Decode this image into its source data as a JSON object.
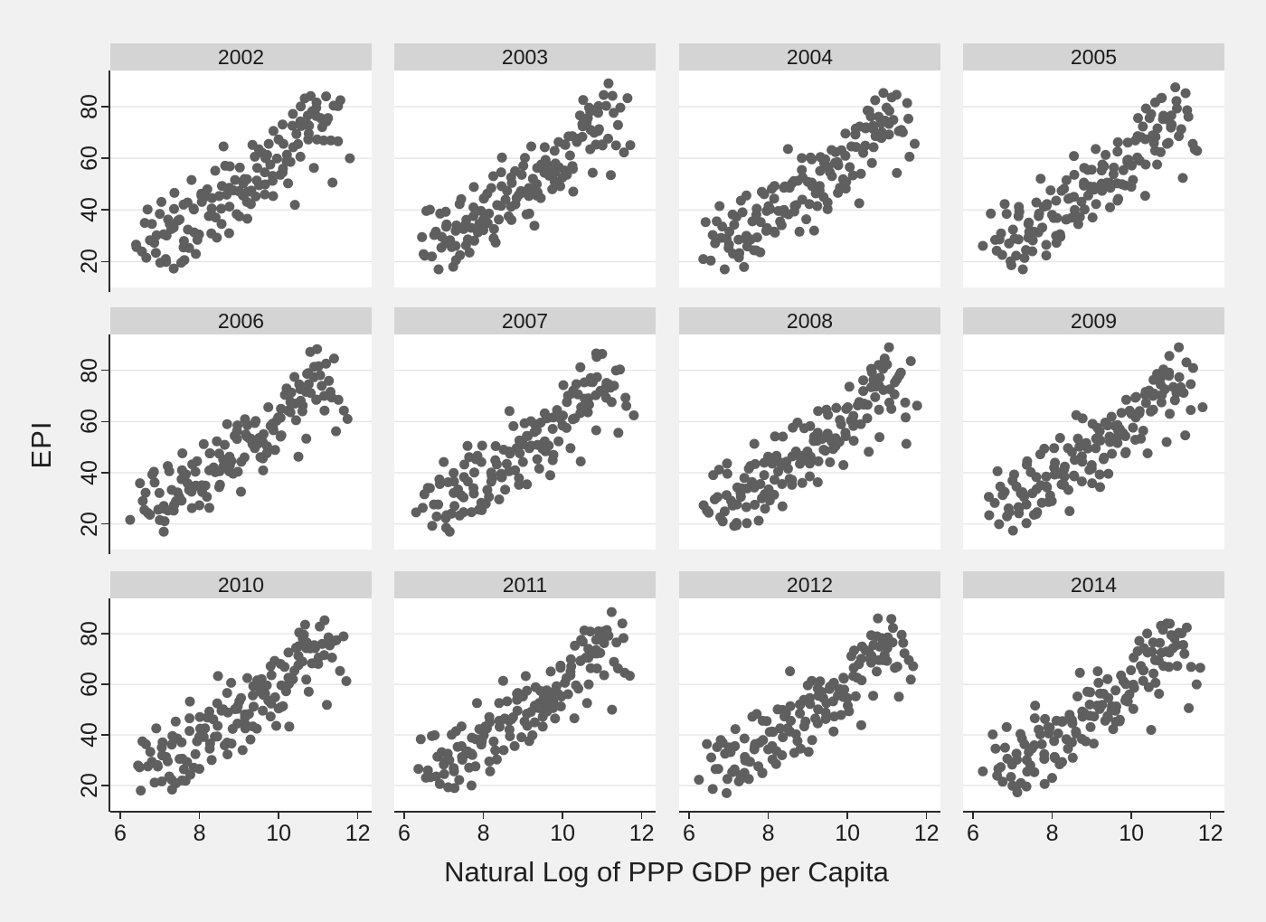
{
  "chart_data": {
    "type": "scatter",
    "title": "",
    "xlabel": "Natural Log of PPP GDP per Capita",
    "ylabel": "EPI",
    "facets": [
      "2002",
      "2003",
      "2004",
      "2005",
      "2006",
      "2007",
      "2008",
      "2009",
      "2010",
      "2011",
      "2012",
      "2014"
    ],
    "grid_layout": "3 rows x 4 columns",
    "x_ticks": [
      6,
      8,
      10,
      12
    ],
    "y_ticks": [
      20,
      40,
      60,
      80
    ],
    "x_domain": [
      5.75,
      12.35
    ],
    "y_domain": [
      10,
      94
    ],
    "gridlines": "horizontal at y ticks",
    "legend": "none",
    "marker_color": "#5f5f5f",
    "panel_bg": "#ffffff",
    "page_bg": "#f1f1f1",
    "header_bg": "#d4d4d4",
    "gridline_color": "#e2e2e2",
    "axis_color": "#2a2a2a",
    "base_points": [
      [
        6.35,
        24
      ],
      [
        6.5,
        29
      ],
      [
        6.55,
        37
      ],
      [
        6.6,
        25
      ],
      [
        6.65,
        21
      ],
      [
        6.7,
        32
      ],
      [
        6.75,
        38
      ],
      [
        6.8,
        26
      ],
      [
        6.85,
        30
      ],
      [
        6.9,
        41
      ],
      [
        6.95,
        24
      ],
      [
        7.0,
        18
      ],
      [
        7.0,
        33
      ],
      [
        7.05,
        27
      ],
      [
        7.1,
        21
      ],
      [
        7.1,
        38
      ],
      [
        7.15,
        30
      ],
      [
        7.2,
        24
      ],
      [
        7.2,
        35
      ],
      [
        7.25,
        19
      ],
      [
        7.3,
        28
      ],
      [
        7.3,
        41
      ],
      [
        7.35,
        33
      ],
      [
        7.4,
        22
      ],
      [
        7.4,
        30
      ],
      [
        7.45,
        37
      ],
      [
        7.5,
        25
      ],
      [
        7.5,
        44
      ],
      [
        7.55,
        31
      ],
      [
        7.6,
        35
      ],
      [
        7.6,
        27
      ],
      [
        7.65,
        40
      ],
      [
        7.7,
        33
      ],
      [
        7.7,
        50
      ],
      [
        7.75,
        23
      ],
      [
        7.8,
        37
      ],
      [
        7.8,
        44
      ],
      [
        7.85,
        30
      ],
      [
        7.9,
        38
      ],
      [
        7.9,
        26
      ],
      [
        7.95,
        45
      ],
      [
        8.0,
        33
      ],
      [
        8.0,
        41
      ],
      [
        8.05,
        29
      ],
      [
        8.1,
        36
      ],
      [
        8.1,
        48
      ],
      [
        8.15,
        42
      ],
      [
        8.2,
        32
      ],
      [
        8.2,
        45
      ],
      [
        8.25,
        38
      ],
      [
        8.3,
        51
      ],
      [
        8.3,
        28
      ],
      [
        8.35,
        40
      ],
      [
        8.4,
        35
      ],
      [
        8.4,
        46
      ],
      [
        8.45,
        43
      ],
      [
        8.5,
        37
      ],
      [
        8.5,
        52
      ],
      [
        8.55,
        47
      ],
      [
        8.6,
        40
      ],
      [
        8.6,
        62
      ],
      [
        8.65,
        34
      ],
      [
        8.7,
        48
      ],
      [
        8.7,
        43
      ],
      [
        8.75,
        55
      ],
      [
        8.8,
        39
      ],
      [
        8.8,
        47
      ],
      [
        8.85,
        50
      ],
      [
        8.9,
        44
      ],
      [
        8.9,
        58
      ],
      [
        8.95,
        37
      ],
      [
        9.0,
        49
      ],
      [
        9.0,
        55
      ],
      [
        9.05,
        46
      ],
      [
        9.1,
        52
      ],
      [
        9.1,
        41
      ],
      [
        9.15,
        57
      ],
      [
        9.15,
        35
      ],
      [
        9.2,
        48
      ],
      [
        9.2,
        62
      ],
      [
        9.25,
        53
      ],
      [
        9.3,
        47
      ],
      [
        9.3,
        58
      ],
      [
        9.35,
        50
      ],
      [
        9.4,
        55
      ],
      [
        9.4,
        44
      ],
      [
        9.45,
        60
      ],
      [
        9.5,
        52
      ],
      [
        9.5,
        48
      ],
      [
        9.55,
        57
      ],
      [
        9.55,
        42
      ],
      [
        9.6,
        51
      ],
      [
        9.6,
        63
      ],
      [
        9.65,
        55
      ],
      [
        9.7,
        49
      ],
      [
        9.7,
        60
      ],
      [
        9.75,
        53
      ],
      [
        9.8,
        58
      ],
      [
        9.8,
        46
      ],
      [
        9.85,
        64
      ],
      [
        9.9,
        56
      ],
      [
        9.9,
        50
      ],
      [
        9.95,
        61
      ],
      [
        10.0,
        54
      ],
      [
        10.0,
        68
      ],
      [
        10.05,
        59
      ],
      [
        10.1,
        66
      ],
      [
        10.1,
        52
      ],
      [
        10.15,
        71
      ],
      [
        10.2,
        62
      ],
      [
        10.2,
        57
      ],
      [
        10.25,
        68
      ],
      [
        10.3,
        74
      ],
      [
        10.3,
        60
      ],
      [
        10.35,
        65
      ],
      [
        10.4,
        70
      ],
      [
        10.4,
        45
      ],
      [
        10.45,
        73
      ],
      [
        10.5,
        66
      ],
      [
        10.5,
        78
      ],
      [
        10.55,
        70
      ],
      [
        10.6,
        75
      ],
      [
        10.6,
        63
      ],
      [
        10.65,
        80
      ],
      [
        10.65,
        74
      ],
      [
        10.7,
        72
      ],
      [
        10.7,
        67
      ],
      [
        10.75,
        76
      ],
      [
        10.75,
        55
      ],
      [
        10.8,
        69
      ],
      [
        10.8,
        82
      ],
      [
        10.85,
        77
      ],
      [
        10.9,
        71
      ],
      [
        10.9,
        84
      ],
      [
        10.95,
        75
      ],
      [
        11.0,
        68
      ],
      [
        11.0,
        79
      ],
      [
        11.05,
        73
      ],
      [
        11.1,
        87
      ],
      [
        11.1,
        66
      ],
      [
        11.15,
        76
      ],
      [
        11.2,
        70
      ],
      [
        11.25,
        81
      ],
      [
        11.3,
        74
      ],
      [
        11.35,
        53
      ],
      [
        11.4,
        77
      ],
      [
        11.45,
        68
      ],
      [
        11.5,
        82
      ],
      [
        11.6,
        64
      ],
      [
        11.7,
        63
      ]
    ],
    "facet_jitter_dx": [
      0.06,
      -0.1,
      0.14,
      -0.05,
      0.01,
      0.1,
      -0.13
    ],
    "facet_jitter_dy": [
      1.6,
      -2.4,
      3.2,
      -1.1,
      0.5,
      2.6,
      -3.0,
      1.3,
      -1.7,
      2.1,
      -0.6
    ],
    "notes": "Each facet shows the same country cloud with small year-to-year variation; positive correlation of EPI with log GDP per capita."
  }
}
